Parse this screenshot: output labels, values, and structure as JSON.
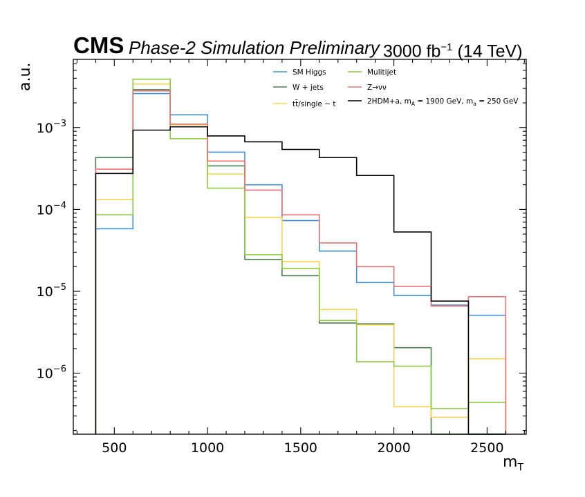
{
  "header": {
    "experiment": "CMS",
    "status": "Phase-2 Simulation Preliminary",
    "lumi_prefix": "3000 fb",
    "lumi_exp": "−1",
    "lumi_suffix": "(14 TeV)"
  },
  "chart_data": {
    "type": "step-histogram",
    "xlabel": "m",
    "xlabel_sub": "T",
    "ylabel": "a.u.",
    "xlim": [
      280,
      2710
    ],
    "ylim": [
      1.8e-07,
      0.0068
    ],
    "yscale": "log",
    "bin_edges": [
      400,
      600,
      800,
      1000,
      1200,
      1400,
      1600,
      1800,
      2000,
      2200,
      2400,
      2600
    ],
    "xticks": [
      500,
      1000,
      1500,
      2000,
      2500
    ],
    "yticks": [
      {
        "value": 0.001,
        "base": "10",
        "exp": "−3"
      },
      {
        "value": 0.0001,
        "base": "10",
        "exp": "−4"
      },
      {
        "value": 1e-05,
        "base": "10",
        "exp": "−5"
      },
      {
        "value": 1e-06,
        "base": "10",
        "exp": "−6"
      }
    ],
    "legend_position": "top-right",
    "series": [
      {
        "name": "SM Higgs",
        "legend_label": "SM Higgs",
        "color": "#3f90da",
        "values": [
          5.8e-05,
          0.0026,
          0.00143,
          0.0005,
          0.0002,
          7.3e-05,
          3.1e-05,
          1.28e-05,
          8.9e-06,
          6.8e-06,
          5.1e-06
        ]
      },
      {
        "name": "W+jets",
        "legend_label": "W + jets",
        "color": "#4b7d4f",
        "values": [
          0.00043,
          0.0029,
          0.00102,
          0.00034,
          2.45e-05,
          1.55e-05,
          4.1e-06,
          4e-06,
          2.05e-06,
          0,
          0
        ]
      },
      {
        "name": "tt/single-t",
        "legend_label": "tt̄/single − t",
        "color": "#ffd34d",
        "values": [
          0.000132,
          0.0034,
          0.00108,
          0.00027,
          8e-05,
          2.3e-05,
          6e-06,
          3.9e-06,
          3.9e-07,
          2.9e-07,
          1.5e-06
        ]
      },
      {
        "name": "Mulitijet",
        "legend_label": "Mulitijet",
        "color": "#8ecb3c",
        "values": [
          8.6e-05,
          0.0039,
          0.00073,
          0.000182,
          2.8e-05,
          1.9e-05,
          4.4e-06,
          1.38e-06,
          1.22e-06,
          3.7e-07,
          4.4e-07
        ]
      },
      {
        "name": "Z->vv",
        "legend_label": "Z→νν",
        "color": "#ee6f73",
        "values": [
          0.00031,
          0.0028,
          0.0011,
          0.00039,
          0.000172,
          8.6e-05,
          3.9e-05,
          2e-05,
          1.15e-05,
          6.6e-06,
          8.6e-06
        ]
      },
      {
        "name": "2HDM+a",
        "legend_label": "2HDM+a, m",
        "legend_mA_sub": "A",
        "legend_mA_value": " = 1900 GeV, m",
        "legend_ma_sub": "a",
        "legend_ma_value": " = 250 GeV",
        "color": "#000000",
        "values": [
          0.000275,
          0.00093,
          0.00102,
          0.00079,
          0.00067,
          0.00054,
          0.00043,
          0.00026,
          5.3e-05,
          7.6e-06,
          0
        ]
      }
    ]
  }
}
